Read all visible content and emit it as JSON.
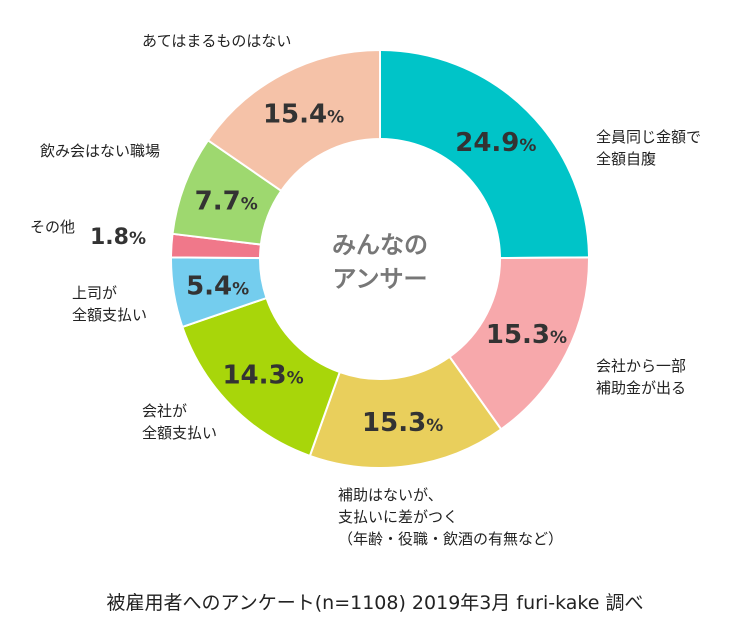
{
  "chart_data": {
    "type": "pie",
    "center_label": "みんなの\nアンサー",
    "slices": [
      {
        "label": "全員同じ金額で\n全額自腹",
        "value": 24.9,
        "color": "#00c4c8"
      },
      {
        "label": "会社から一部\n補助金が出る",
        "value": 15.3,
        "color": "#f7a8ab"
      },
      {
        "label": "補助はないが、\n支払いに差がつく\n（年齢・役職・飲酒の有無など）",
        "value": 15.3,
        "color": "#e9cf5c"
      },
      {
        "label": "会社が\n全額支払い",
        "value": 14.3,
        "color": "#a8d60a"
      },
      {
        "label": "上司が\n全額支払い",
        "value": 5.4,
        "color": "#74cdee"
      },
      {
        "label": "その他",
        "value": 1.8,
        "color": "#f0788a"
      },
      {
        "label": "飲み会はない職場",
        "value": 7.7,
        "color": "#9ed86f"
      },
      {
        "label": "あてはまるものはない",
        "value": 15.4,
        "color": "#f5c2a8"
      }
    ],
    "value_suffix": "%"
  },
  "footer": "被雇用者へのアンケート(n=1108) 2019年3月 furi-kake 調べ"
}
